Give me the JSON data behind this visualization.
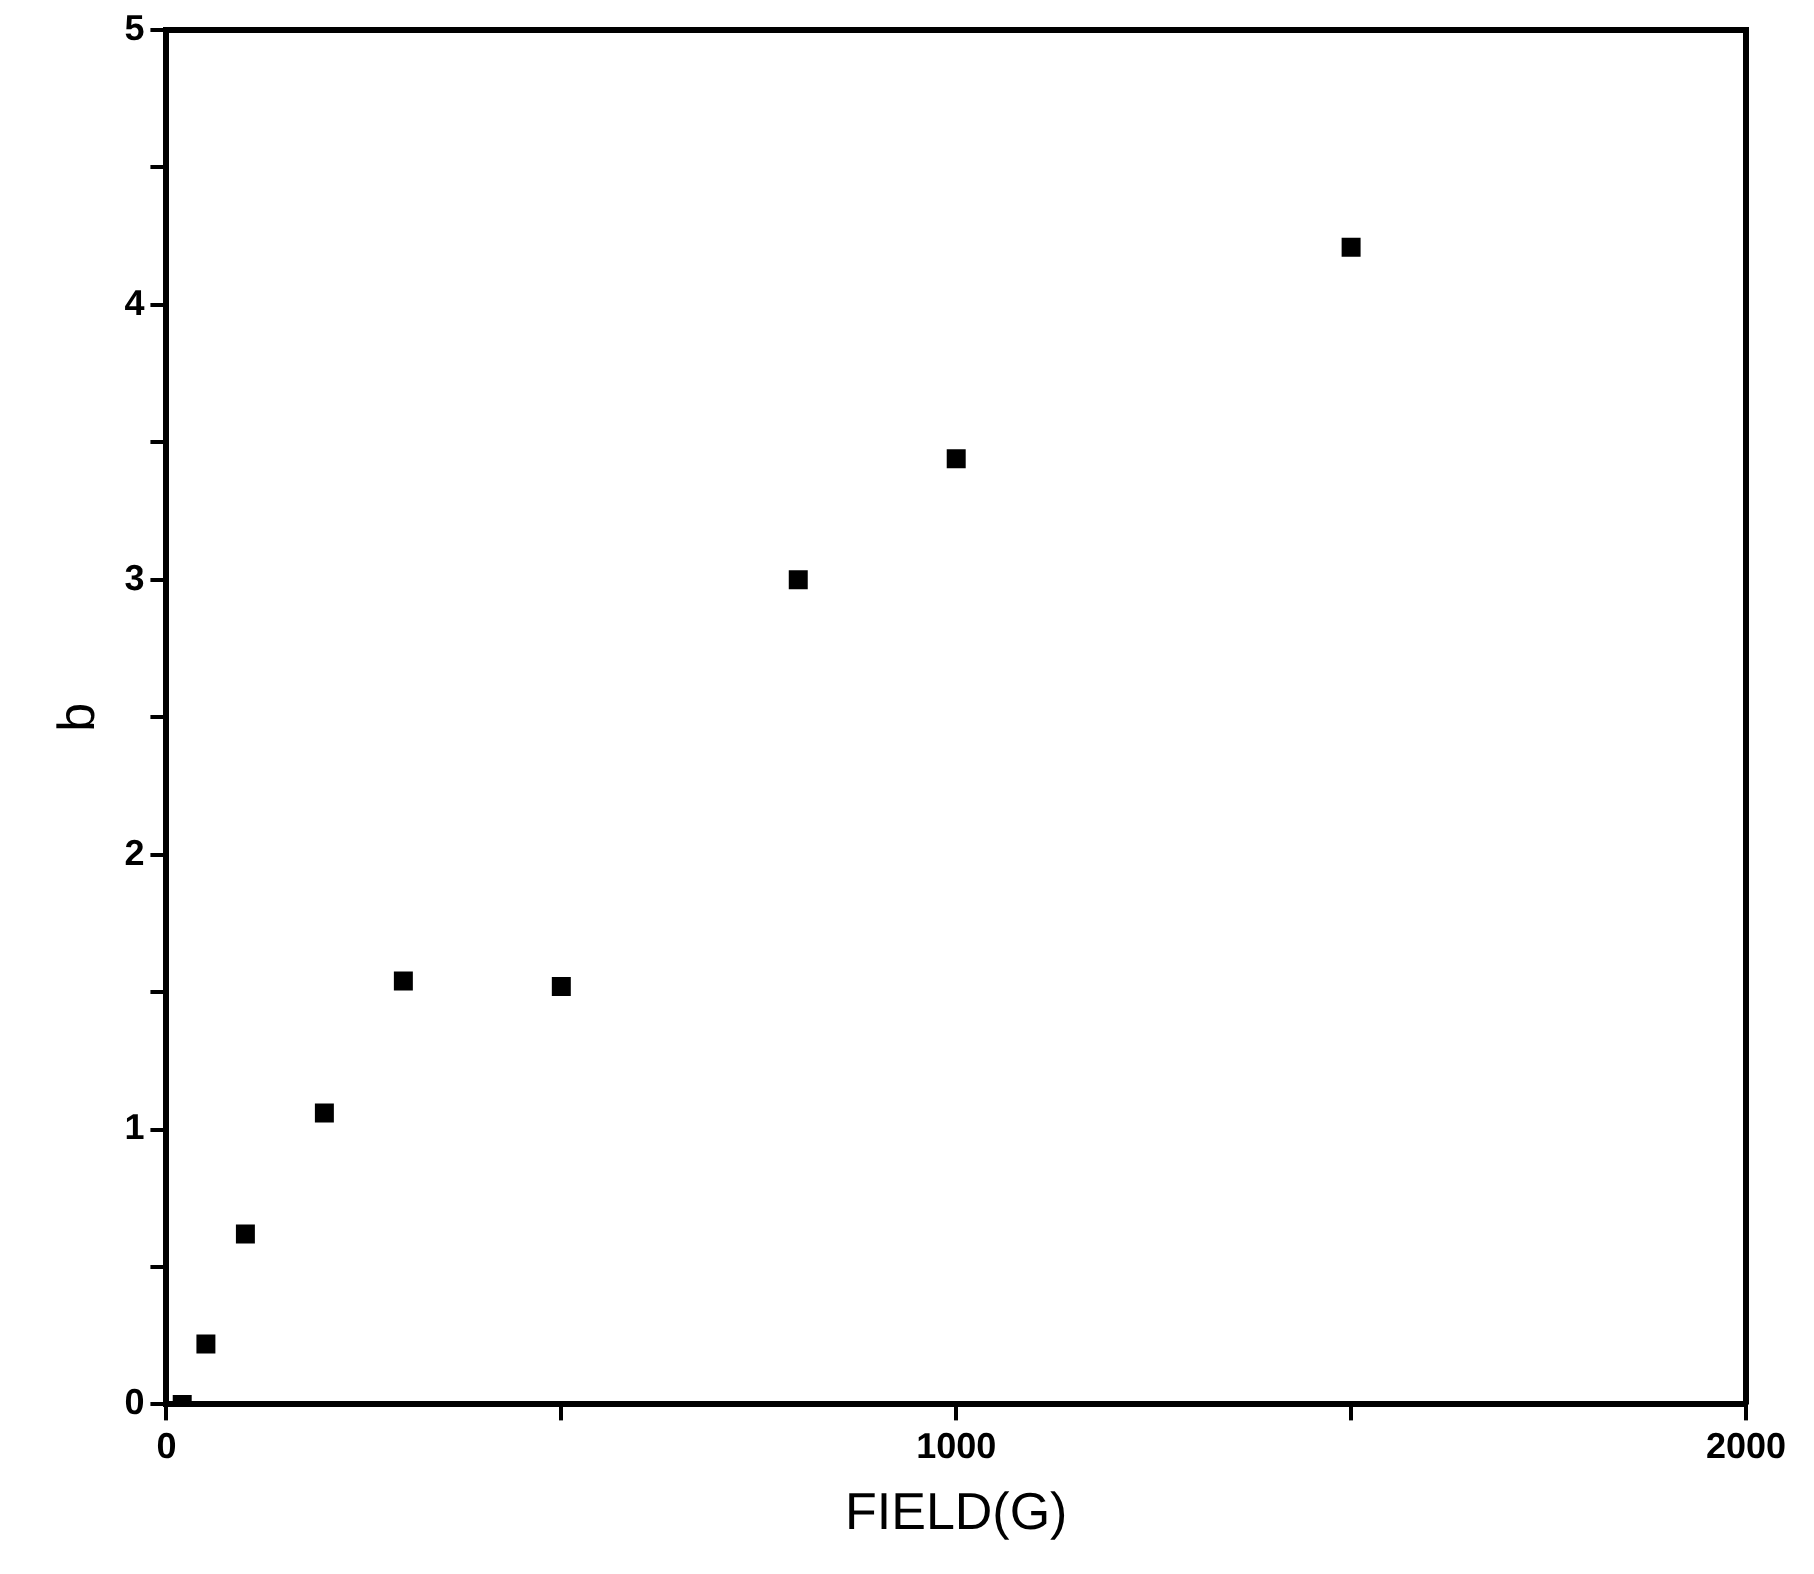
{
  "chart_data": {
    "type": "scatter",
    "xlabel": "FIELD(G)",
    "ylabel": "b",
    "x": [
      20,
      50,
      100,
      200,
      300,
      500,
      800,
      1000,
      1500
    ],
    "values": [
      0,
      0.22,
      0.62,
      1.06,
      1.54,
      1.52,
      3.0,
      3.44,
      4.21
    ],
    "color": "#000000",
    "marker": "square",
    "xlim": [
      0,
      2000
    ],
    "xticks": [
      0,
      {
        "value": 500,
        "label": null
      },
      1000,
      {
        "value": 1500,
        "label": null
      },
      2000
    ],
    "ylim": [
      0,
      5
    ],
    "yticks": [
      0,
      {
        "value": 0.5,
        "label": null
      },
      1,
      {
        "value": 1.5,
        "label": null
      },
      2,
      {
        "value": 2.5,
        "label": null
      },
      3,
      {
        "value": 3.5,
        "label": null
      },
      4,
      {
        "value": 4.5,
        "label": null
      },
      5
    ],
    "legend": false
  }
}
